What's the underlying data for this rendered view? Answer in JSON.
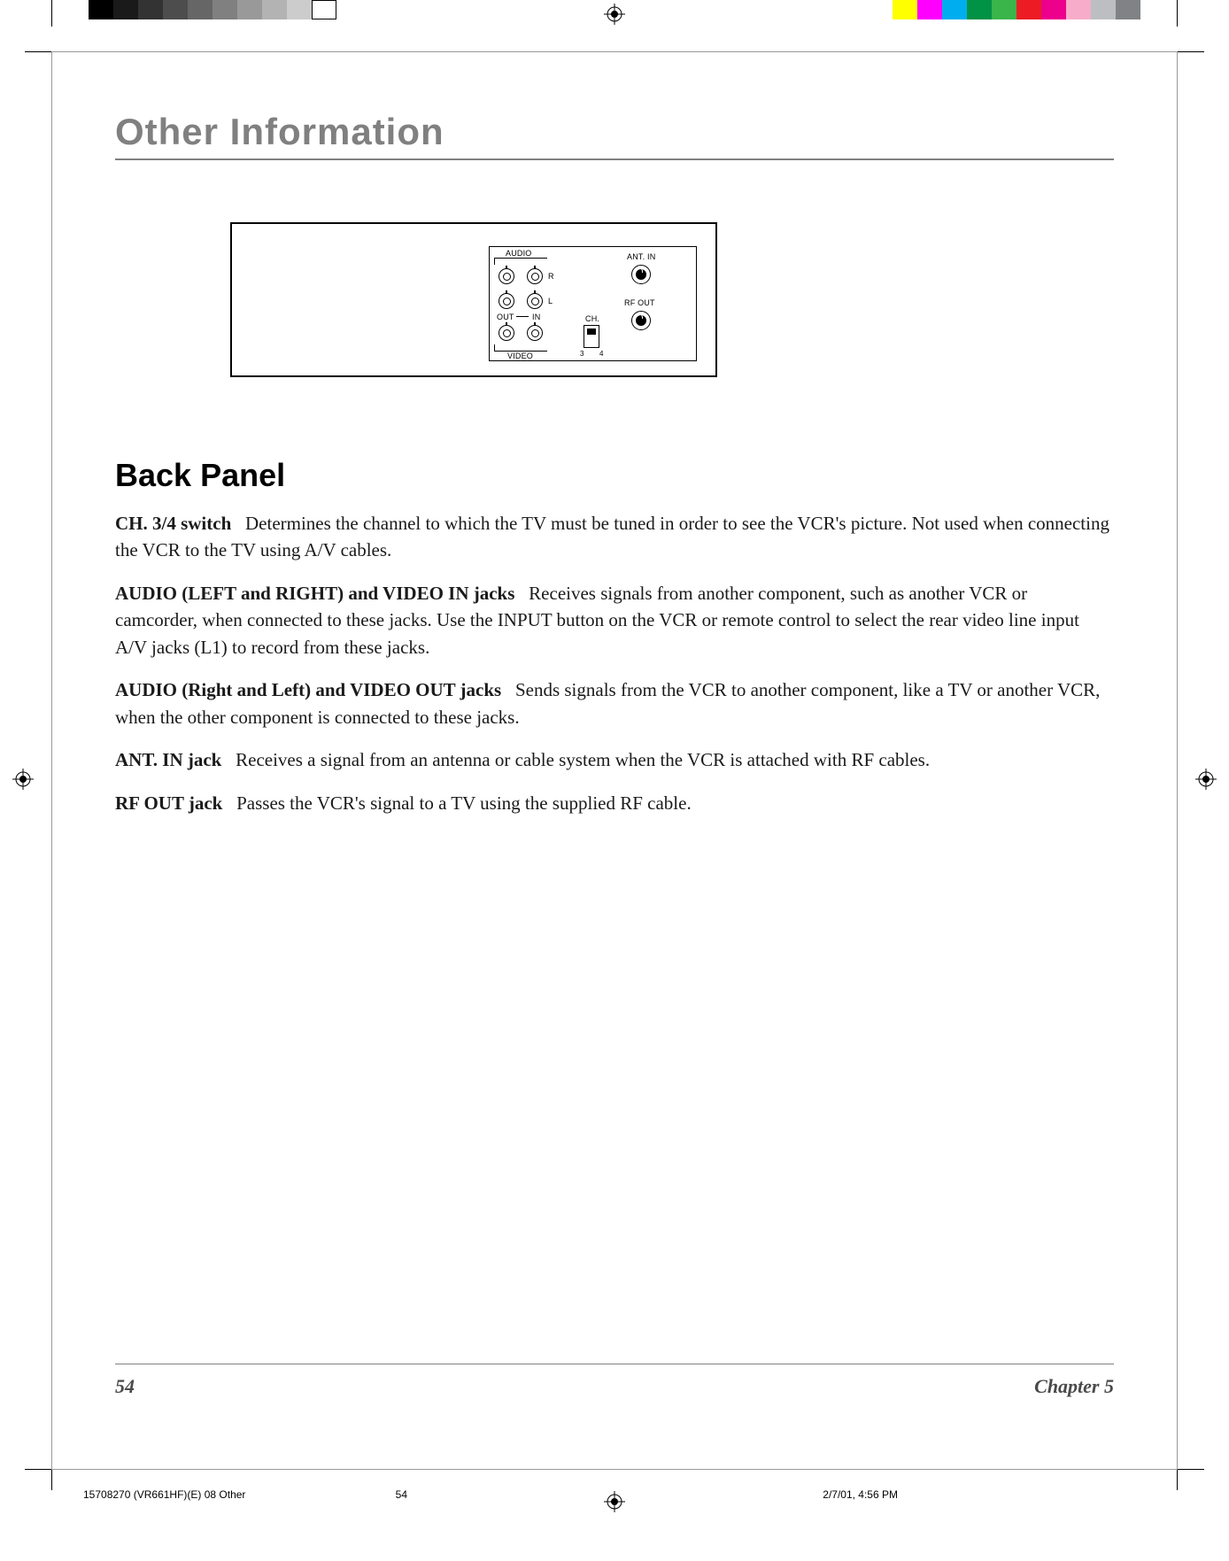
{
  "colorbar_left": [
    "#000000",
    "#1a1a1a",
    "#333333",
    "#4d4d4d",
    "#666666",
    "#808080",
    "#999999",
    "#b3b3b3",
    "#cccccc",
    "#ffffff"
  ],
  "colorbar_right": [
    "#ffff00",
    "#ff00ff",
    "#00aeef",
    "#009245",
    "#39b54a",
    "#ed1c24",
    "#ec008c",
    "#f7adc9",
    "#bcbec0",
    "#808285"
  ],
  "header": {
    "title": "Other Information"
  },
  "diagram": {
    "labels": {
      "audio": "AUDIO",
      "ant_in": "ANT. IN",
      "r": "R",
      "l": "L",
      "out": "OUT",
      "in": "IN",
      "rf_out": "RF OUT",
      "ch": "CH.",
      "three": "3",
      "four": "4",
      "video": "VIDEO"
    }
  },
  "section": {
    "title": "Back Panel"
  },
  "paragraphs": [
    {
      "term": "CH. 3/4 switch",
      "text": "Determines the channel to which the TV must be tuned in order to see the VCR's picture. Not used when connecting the VCR to the TV using A/V cables."
    },
    {
      "term": "AUDIO (LEFT and RIGHT) and VIDEO IN jacks",
      "text": "Receives signals from another component, such as another VCR or camcorder, when connected to these jacks. Use the INPUT button on the VCR or remote control to select the rear video line input A/V jacks (L1) to record from these jacks."
    },
    {
      "term": "AUDIO (Right and Left) and VIDEO OUT jacks",
      "text": "Sends signals from the VCR to another component, like a TV or another VCR, when the other component is connected to these jacks."
    },
    {
      "term": "ANT. IN jack",
      "text": "Receives a signal from an antenna or cable system when the VCR is attached with RF cables."
    },
    {
      "term": "RF OUT jack",
      "text": "Passes the VCR's signal to a TV using the supplied RF cable."
    }
  ],
  "footer": {
    "page": "54",
    "chapter": "Chapter 5"
  },
  "slug": {
    "file": "15708270 (VR661HF)(E) 08 Other",
    "pg": "54",
    "date": "2/7/01, 4:56 PM"
  }
}
